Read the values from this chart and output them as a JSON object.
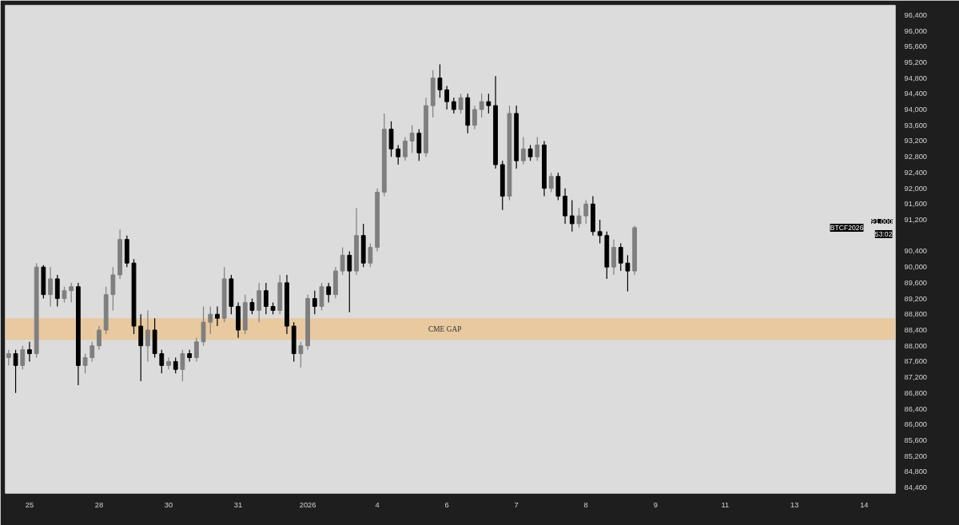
{
  "chart_data": {
    "type": "candlestick",
    "categories": [
      null,
      null,
      null,
      "25",
      null,
      null,
      null,
      null,
      null,
      null,
      null,
      null,
      null,
      "28",
      null,
      null,
      null,
      null,
      null,
      null,
      null,
      null,
      null,
      "30",
      null,
      null,
      null,
      null,
      null,
      null,
      null,
      null,
      null,
      "31",
      null,
      null,
      null,
      null,
      null,
      null,
      null,
      null,
      null,
      "2026",
      null,
      null,
      null,
      null,
      null,
      null,
      null,
      null,
      null,
      "4",
      null,
      null,
      null,
      null,
      null,
      null,
      null,
      null,
      null,
      "6",
      null,
      null,
      null,
      null,
      null,
      null,
      null,
      null,
      null,
      "7",
      null,
      null,
      null,
      null,
      null,
      null,
      null,
      null,
      null,
      "8",
      null,
      null,
      null,
      null,
      null,
      null,
      null,
      null,
      null,
      "9",
      null,
      null,
      null,
      null,
      null,
      null,
      null,
      null,
      null,
      "11",
      null,
      null,
      null,
      null,
      null,
      null,
      null,
      null,
      null,
      "13",
      null,
      null,
      null,
      null,
      null,
      null,
      null,
      null,
      null,
      "14",
      null,
      null,
      null,
      null
    ],
    "ohlc": [
      [
        87700,
        87900,
        87500,
        87800
      ],
      [
        87800,
        87900,
        86800,
        87500
      ],
      [
        87500,
        88000,
        87400,
        87900
      ],
      [
        87900,
        88100,
        87600,
        87800
      ],
      [
        87800,
        90100,
        87700,
        90000
      ],
      [
        90000,
        90050,
        89200,
        89300
      ],
      [
        89300,
        90000,
        89000,
        89700
      ],
      [
        89700,
        89800,
        89000,
        89200
      ],
      [
        89200,
        89500,
        89100,
        89400
      ],
      [
        89400,
        89600,
        89100,
        89500
      ],
      [
        89500,
        89600,
        87000,
        87500
      ],
      [
        87500,
        87800,
        87300,
        87700
      ],
      [
        87700,
        88100,
        87600,
        88000
      ],
      [
        88000,
        88500,
        87900,
        88400
      ],
      [
        88400,
        89500,
        88300,
        89300
      ],
      [
        89300,
        90000,
        88900,
        89800
      ],
      [
        89800,
        90950,
        89700,
        90700
      ],
      [
        90700,
        90800,
        90000,
        90100
      ],
      [
        90100,
        90200,
        88300,
        88500
      ],
      [
        88500,
        88800,
        87100,
        88000
      ],
      [
        88000,
        88900,
        87600,
        88400
      ],
      [
        88400,
        88700,
        87700,
        87800
      ],
      [
        87800,
        87900,
        87300,
        87500
      ],
      [
        87500,
        87700,
        87400,
        87600
      ],
      [
        87600,
        87700,
        87300,
        87400
      ],
      [
        87400,
        87900,
        87100,
        87800
      ],
      [
        87800,
        87900,
        87600,
        87700
      ],
      [
        87700,
        88200,
        87600,
        88100
      ],
      [
        88100,
        89000,
        88000,
        88600
      ],
      [
        88600,
        89000,
        88300,
        88800
      ],
      [
        88800,
        89000,
        88500,
        88700
      ],
      [
        88700,
        90000,
        88600,
        89700
      ],
      [
        89700,
        89800,
        88800,
        89000
      ],
      [
        89000,
        89100,
        88200,
        88400
      ],
      [
        88400,
        89300,
        88300,
        89100
      ],
      [
        89100,
        89200,
        88800,
        88900
      ],
      [
        88900,
        89600,
        88600,
        89400
      ],
      [
        89400,
        89600,
        88800,
        89000
      ],
      [
        89000,
        89100,
        88800,
        88900
      ],
      [
        88900,
        89800,
        88800,
        89600
      ],
      [
        89600,
        89800,
        88300,
        88500
      ],
      [
        88500,
        88600,
        87600,
        87800
      ],
      [
        87800,
        88100,
        87450,
        88000
      ],
      [
        88000,
        89300,
        87900,
        89200
      ],
      [
        89200,
        89400,
        88800,
        89000
      ],
      [
        89000,
        89600,
        88900,
        89500
      ],
      [
        89500,
        89600,
        89100,
        89300
      ],
      [
        89300,
        90000,
        89200,
        89900
      ],
      [
        89900,
        90500,
        89800,
        90300
      ],
      [
        90300,
        90400,
        88850,
        89900
      ],
      [
        89900,
        91500,
        89800,
        90800
      ],
      [
        90800,
        91100,
        90000,
        90100
      ],
      [
        90100,
        90600,
        90000,
        90500
      ],
      [
        90500,
        92000,
        90400,
        91900
      ],
      [
        91900,
        93900,
        91800,
        93500
      ],
      [
        93500,
        93700,
        92800,
        93000
      ],
      [
        93000,
        93100,
        92600,
        92800
      ],
      [
        92800,
        93300,
        92700,
        93200
      ],
      [
        93200,
        93600,
        92900,
        93400
      ],
      [
        93400,
        93500,
        92700,
        92900
      ],
      [
        92900,
        94300,
        92800,
        94100
      ],
      [
        94100,
        95000,
        93800,
        94800
      ],
      [
        94800,
        95150,
        94300,
        94500
      ],
      [
        94500,
        94600,
        94000,
        94200
      ],
      [
        94200,
        94300,
        93900,
        94000
      ],
      [
        94000,
        94400,
        93900,
        94300
      ],
      [
        94300,
        94400,
        93400,
        93600
      ],
      [
        93600,
        94100,
        93500,
        94000
      ],
      [
        94000,
        94400,
        93800,
        94200
      ],
      [
        94200,
        94400,
        93900,
        94100
      ],
      [
        94100,
        94850,
        92500,
        92600
      ],
      [
        92600,
        92700,
        91450,
        91800
      ],
      [
        91800,
        94100,
        91700,
        93900
      ],
      [
        93900,
        94100,
        92500,
        92700
      ],
      [
        92700,
        93300,
        92600,
        93000
      ],
      [
        93000,
        93100,
        92700,
        92800
      ],
      [
        92800,
        93300,
        92700,
        93100
      ],
      [
        93100,
        93200,
        91800,
        92000
      ],
      [
        92000,
        92400,
        91900,
        92300
      ],
      [
        92300,
        92400,
        91700,
        91800
      ],
      [
        91800,
        92000,
        91100,
        91300
      ],
      [
        91300,
        91700,
        90900,
        91100
      ],
      [
        91100,
        91500,
        91000,
        91300
      ],
      [
        91300,
        91700,
        91100,
        91600
      ],
      [
        91600,
        91800,
        90800,
        90900
      ],
      [
        90900,
        91200,
        90600,
        90800
      ],
      [
        90800,
        90900,
        89700,
        90000
      ],
      [
        90000,
        90700,
        89800,
        90500
      ],
      [
        90500,
        90600,
        89900,
        90100
      ],
      [
        90100,
        90300,
        89380,
        89900
      ],
      [
        89900,
        91050,
        89800,
        91000
      ],
      null,
      null,
      null,
      null,
      null,
      null,
      null,
      null,
      null,
      null,
      null,
      null,
      null,
      null,
      null,
      null,
      null,
      null,
      null,
      null,
      null,
      null,
      null,
      null,
      null,
      null,
      null,
      null,
      null,
      null,
      null,
      null,
      null,
      null,
      null,
      null,
      null
    ],
    "colors": [
      "#7f7f7f",
      "#000000",
      "#7f7f7f",
      "#000000",
      "#7f7f7f",
      "#000000",
      "#7f7f7f",
      "#000000",
      "#7f7f7f",
      "#7f7f7f",
      "#000000",
      "#7f7f7f",
      "#7f7f7f",
      "#7f7f7f",
      "#7f7f7f",
      "#7f7f7f",
      "#7f7f7f",
      "#000000",
      "#000000",
      "#000000",
      "#7f7f7f",
      "#000000",
      "#000000",
      "#7f7f7f",
      "#000000",
      "#7f7f7f",
      "#000000",
      "#7f7f7f",
      "#7f7f7f",
      "#7f7f7f",
      "#000000",
      "#7f7f7f",
      "#000000",
      "#000000",
      "#7f7f7f",
      "#000000",
      "#7f7f7f",
      "#000000",
      "#000000",
      "#7f7f7f",
      "#000000",
      "#000000",
      "#7f7f7f",
      "#7f7f7f",
      "#000000",
      "#7f7f7f",
      "#000000",
      "#7f7f7f",
      "#7f7f7f",
      "#000000",
      "#7f7f7f",
      "#000000",
      "#7f7f7f",
      "#7f7f7f",
      "#7f7f7f",
      "#000000",
      "#000000",
      "#7f7f7f",
      "#7f7f7f",
      "#000000",
      "#7f7f7f",
      "#7f7f7f",
      "#000000",
      "#000000",
      "#000000",
      "#7f7f7f",
      "#000000",
      "#7f7f7f",
      "#7f7f7f",
      "#000000",
      "#000000",
      "#000000",
      "#7f7f7f",
      "#000000",
      "#7f7f7f",
      "#000000",
      "#7f7f7f",
      "#000000",
      "#7f7f7f",
      "#000000",
      "#000000",
      "#000000",
      "#7f7f7f",
      "#7f7f7f",
      "#000000",
      "#000000",
      "#000000",
      "#7f7f7f",
      "#000000",
      "#000000",
      "#7f7f7f",
      null,
      null,
      null,
      null,
      null,
      null,
      null,
      null,
      null,
      null,
      null,
      null,
      null,
      null,
      null,
      null,
      null,
      null,
      null,
      null,
      null,
      null,
      null,
      null,
      null,
      null,
      null,
      null,
      null,
      null,
      null,
      null,
      null,
      null,
      null,
      null,
      null
    ],
    "ylim": [
      84250,
      96650
    ],
    "yticks": [
      {
        "value": 84400,
        "label": "84,400"
      },
      {
        "value": 84800,
        "label": "84,800"
      },
      {
        "value": 85200,
        "label": "85,200"
      },
      {
        "value": 85600,
        "label": "85,600"
      },
      {
        "value": 86000,
        "label": "86,000"
      },
      {
        "value": 86400,
        "label": "86,400"
      },
      {
        "value": 86800,
        "label": "86,800"
      },
      {
        "value": 87200,
        "label": "87,200"
      },
      {
        "value": 87600,
        "label": "87,600"
      },
      {
        "value": 88000,
        "label": "88,000"
      },
      {
        "value": 88400,
        "label": "88,400"
      },
      {
        "value": 88800,
        "label": "88,800"
      },
      {
        "value": 89200,
        "label": "89,200"
      },
      {
        "value": 89600,
        "label": "89,600"
      },
      {
        "value": 90000,
        "label": "90,000"
      },
      {
        "value": 90400,
        "label": "90,400"
      },
      {
        "value": 91200,
        "label": "91,200"
      },
      {
        "value": 91600,
        "label": "91,600"
      },
      {
        "value": 92000,
        "label": "92,000"
      },
      {
        "value": 92400,
        "label": "92,400"
      },
      {
        "value": 92800,
        "label": "92,800"
      },
      {
        "value": 93200,
        "label": "93,200"
      },
      {
        "value": 93600,
        "label": "93,600"
      },
      {
        "value": 94000,
        "label": "94,000"
      },
      {
        "value": 94400,
        "label": "94,400"
      },
      {
        "value": 94800,
        "label": "94,800"
      },
      {
        "value": 95200,
        "label": "95,200"
      },
      {
        "value": 95600,
        "label": "95,600"
      },
      {
        "value": 96000,
        "label": "96,000"
      },
      {
        "value": 96400,
        "label": "96,400"
      }
    ],
    "bands": [
      {
        "axis": "y",
        "from": 88150,
        "to": 88700,
        "label": "CME GAP",
        "color": "#e8c9a0"
      }
    ],
    "annotations": [
      "BTCF2026",
      "91,000",
      "53:02"
    ],
    "grid": false
  }
}
